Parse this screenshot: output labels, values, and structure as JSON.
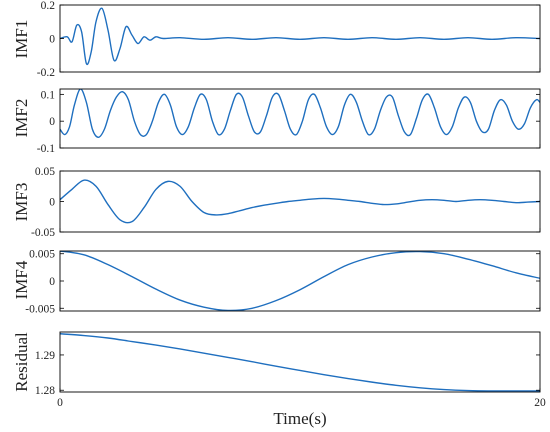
{
  "chart_data": {
    "type": "line",
    "title": "",
    "xlabel": "Time(s)",
    "xlim": [
      0,
      20
    ],
    "x_ticks": [
      "0",
      "20"
    ],
    "line_color": "#1f6fbf",
    "panels": [
      {
        "id": "imf1",
        "ylabel": "IMF1",
        "ylim": [
          -0.2,
          0.2
        ],
        "y_ticks": [
          0.2,
          0,
          -0.2
        ],
        "y_tick_labels": [
          "0.2",
          "0",
          "-0.2"
        ],
        "x": [
          0,
          0.3,
          0.5,
          0.7,
          0.9,
          1.1,
          1.3,
          1.5,
          1.75,
          2.0,
          2.25,
          2.5,
          2.75,
          3.0,
          3.25,
          3.5,
          3.75,
          4.0,
          4.3,
          5,
          6,
          7,
          8,
          9,
          10,
          11,
          12,
          13,
          14,
          15,
          16,
          17,
          18,
          19,
          20
        ],
        "y": [
          0.0,
          0.01,
          -0.02,
          0.08,
          0.04,
          -0.15,
          -0.08,
          0.1,
          0.18,
          0.05,
          -0.13,
          -0.06,
          0.07,
          0.02,
          -0.03,
          0.01,
          -0.01,
          0.01,
          0.0,
          0.005,
          -0.005,
          0.005,
          -0.005,
          0.005,
          -0.005,
          0.005,
          -0.005,
          0.005,
          -0.005,
          0.005,
          -0.005,
          0.005,
          -0.005,
          0.005,
          0.0
        ]
      },
      {
        "id": "imf2",
        "ylabel": "IMF2",
        "ylim": [
          -0.1,
          0.12
        ],
        "y_ticks": [
          0.1,
          0,
          -0.1
        ],
        "y_tick_labels": [
          "0.1",
          "0",
          "-0.1"
        ],
        "x": [
          0,
          0.2,
          0.4,
          0.6,
          0.85,
          1.1,
          1.35,
          1.6,
          1.85,
          2.1,
          2.35,
          2.6,
          2.85,
          3.1,
          3.35,
          3.6,
          3.85,
          4.1,
          4.35,
          4.6,
          4.85,
          5.1,
          5.35,
          5.6,
          5.85,
          6.1,
          6.35,
          6.6,
          6.85,
          7.1,
          7.35,
          7.6,
          7.85,
          8.1,
          8.35,
          8.6,
          8.85,
          9.1,
          9.35,
          9.6,
          9.85,
          10.1,
          10.35,
          10.6,
          10.85,
          11.1,
          11.35,
          11.6,
          11.85,
          12.1,
          12.35,
          12.6,
          12.85,
          13.1,
          13.35,
          13.6,
          13.85,
          14.1,
          14.35,
          14.6,
          14.85,
          15.1,
          15.35,
          15.6,
          15.85,
          16.1,
          16.35,
          16.6,
          16.85,
          17.1,
          17.35,
          17.6,
          17.85,
          18.1,
          18.35,
          18.6,
          18.85,
          19.1,
          19.35,
          19.6,
          19.85,
          20
        ],
        "y": [
          -0.03,
          -0.05,
          -0.02,
          0.06,
          0.12,
          0.07,
          -0.03,
          -0.06,
          -0.03,
          0.04,
          0.09,
          0.11,
          0.08,
          0.0,
          -0.05,
          -0.05,
          0.0,
          0.07,
          0.1,
          0.06,
          -0.02,
          -0.05,
          -0.02,
          0.05,
          0.1,
          0.08,
          0.0,
          -0.05,
          -0.03,
          0.04,
          0.1,
          0.09,
          0.02,
          -0.04,
          -0.04,
          0.02,
          0.09,
          0.1,
          0.04,
          -0.03,
          -0.05,
          0.0,
          0.08,
          0.1,
          0.05,
          -0.02,
          -0.05,
          -0.02,
          0.06,
          0.1,
          0.07,
          0.0,
          -0.05,
          -0.03,
          0.04,
          0.09,
          0.09,
          0.02,
          -0.04,
          -0.05,
          0.01,
          0.08,
          0.1,
          0.05,
          -0.02,
          -0.05,
          -0.02,
          0.05,
          0.09,
          0.07,
          0.0,
          -0.04,
          -0.03,
          0.04,
          0.08,
          0.06,
          0.0,
          -0.03,
          -0.01,
          0.05,
          0.08,
          0.07
        ]
      },
      {
        "id": "imf3",
        "ylabel": "IMF3",
        "ylim": [
          -0.05,
          0.05
        ],
        "y_ticks": [
          0.05,
          0,
          -0.05
        ],
        "y_tick_labels": [
          "0.05",
          "0",
          "-0.05"
        ],
        "x": [
          0,
          0.5,
          1.0,
          1.5,
          2.0,
          2.5,
          3.0,
          3.5,
          4.0,
          4.5,
          5.0,
          5.5,
          6.0,
          6.5,
          7.0,
          7.5,
          8.0,
          8.5,
          9.0,
          9.5,
          10.0,
          10.5,
          11.0,
          11.5,
          12.0,
          12.5,
          13.0,
          13.5,
          14.0,
          14.5,
          15.0,
          15.5,
          16.0,
          16.5,
          17.0,
          17.5,
          18.0,
          18.5,
          19.0,
          19.5,
          20.0
        ],
        "y": [
          0.003,
          0.02,
          0.035,
          0.025,
          -0.005,
          -0.03,
          -0.033,
          -0.01,
          0.02,
          0.033,
          0.025,
          0.0,
          -0.018,
          -0.022,
          -0.02,
          -0.015,
          -0.01,
          -0.006,
          -0.003,
          0.0,
          0.002,
          0.004,
          0.005,
          0.004,
          0.002,
          0.0,
          -0.003,
          -0.005,
          -0.004,
          -0.001,
          0.002,
          0.003,
          0.002,
          0.0,
          0.002,
          0.003,
          0.002,
          0.0,
          -0.002,
          -0.001,
          0.0
        ]
      },
      {
        "id": "imf4",
        "ylabel": "IMF4",
        "ylim": [
          -0.0055,
          0.0055
        ],
        "y_ticks": [
          0.005,
          0,
          -0.005
        ],
        "y_tick_labels": [
          "0.005",
          "0",
          "-0.005"
        ],
        "x": [
          0,
          1,
          2,
          3,
          4,
          5,
          6,
          7,
          8,
          9,
          10,
          11,
          12,
          13,
          14,
          15,
          16,
          17,
          18,
          19,
          20
        ],
        "y": [
          0.0055,
          0.0048,
          0.003,
          0.0008,
          -0.0015,
          -0.0035,
          -0.0048,
          -0.0054,
          -0.005,
          -0.0036,
          -0.0016,
          0.0008,
          0.003,
          0.0044,
          0.0052,
          0.0054,
          0.005,
          0.004,
          0.0028,
          0.0015,
          0.0005
        ]
      },
      {
        "id": "residual",
        "ylabel": "Residual",
        "ylim": [
          1.2795,
          1.2965
        ],
        "y_ticks": [
          1.29,
          1.28
        ],
        "y_tick_labels": [
          "1.29",
          "1.28"
        ],
        "x": [
          0,
          1,
          2,
          3,
          4,
          5,
          6,
          7,
          8,
          9,
          10,
          11,
          12,
          13,
          14,
          15,
          16,
          17,
          18,
          19,
          20
        ],
        "y": [
          1.296,
          1.2955,
          1.2948,
          1.2938,
          1.2928,
          1.2917,
          1.2905,
          1.2893,
          1.2881,
          1.2868,
          1.2856,
          1.2844,
          1.2833,
          1.2823,
          1.2814,
          1.2807,
          1.2802,
          1.2799,
          1.2798,
          1.2798,
          1.2798
        ]
      }
    ]
  }
}
